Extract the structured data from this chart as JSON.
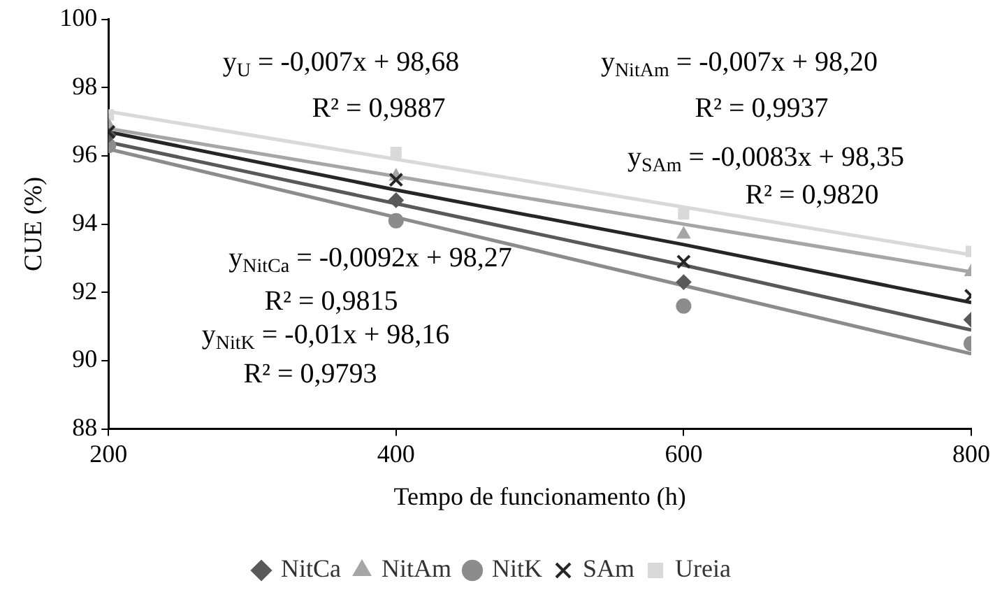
{
  "chart_data": {
    "type": "scatter",
    "xlabel": "Tempo de funcionamento (h)",
    "ylabel": "CUE (%)",
    "x": [
      200,
      400,
      600,
      800
    ],
    "xlim": [
      200,
      800
    ],
    "xticks": [
      200,
      400,
      600,
      800
    ],
    "ylim": [
      88,
      100
    ],
    "yticks": [
      88,
      90,
      92,
      94,
      96,
      98,
      100
    ],
    "grid": false,
    "legend": "bottom",
    "series": [
      {
        "name": "NitCa",
        "color": "#595959",
        "marker": "diamond",
        "values": [
          96.6,
          94.7,
          92.3,
          91.2
        ]
      },
      {
        "name": "NitAm",
        "color": "#a6a6a6",
        "marker": "triangle",
        "values": [
          96.9,
          95.4,
          93.7,
          92.6
        ]
      },
      {
        "name": "NitK",
        "color": "#8c8c8c",
        "marker": "circle",
        "values": [
          96.3,
          94.1,
          91.6,
          90.5
        ]
      },
      {
        "name": "SAm",
        "color": "#262626",
        "marker": "cross",
        "values": [
          96.7,
          95.3,
          92.9,
          91.9
        ]
      },
      {
        "name": "Ureia",
        "color": "#d9d9d9",
        "marker": "square",
        "values": [
          97.2,
          96.1,
          94.3,
          93.2
        ]
      },
      {
        "type": "line",
        "color": "#d9d9d9",
        "values": [
          97.3,
          95.9,
          94.5,
          93.1
        ]
      },
      {
        "type": "line",
        "color": "#a6a6a6",
        "values": [
          96.8,
          95.4,
          94.0,
          92.6
        ]
      },
      {
        "type": "line",
        "color": "#262626",
        "values": [
          96.7,
          95.0,
          93.4,
          91.7
        ]
      },
      {
        "type": "line",
        "color": "#595959",
        "values": [
          96.4,
          94.6,
          92.8,
          90.9
        ]
      },
      {
        "type": "line",
        "color": "#8c8c8c",
        "values": [
          96.2,
          94.2,
          92.2,
          90.2
        ]
      }
    ],
    "annotations": [
      "y$_{U}$ = -0,007x + 98,68",
      "R² = 0,9887",
      "y$_{NitAm}$ = -0,007x + 98,20",
      "R² = 0,9937",
      "y$_{SAm}$ = -0,0083x + 98,35",
      "R² = 0,9820",
      "y$_{NitCa}$ = -0,0092x + 98,27",
      "R² = 0,9815",
      "y$_{NitK}$ = -0,01x + 98,16",
      "R² = 0,9793"
    ]
  }
}
